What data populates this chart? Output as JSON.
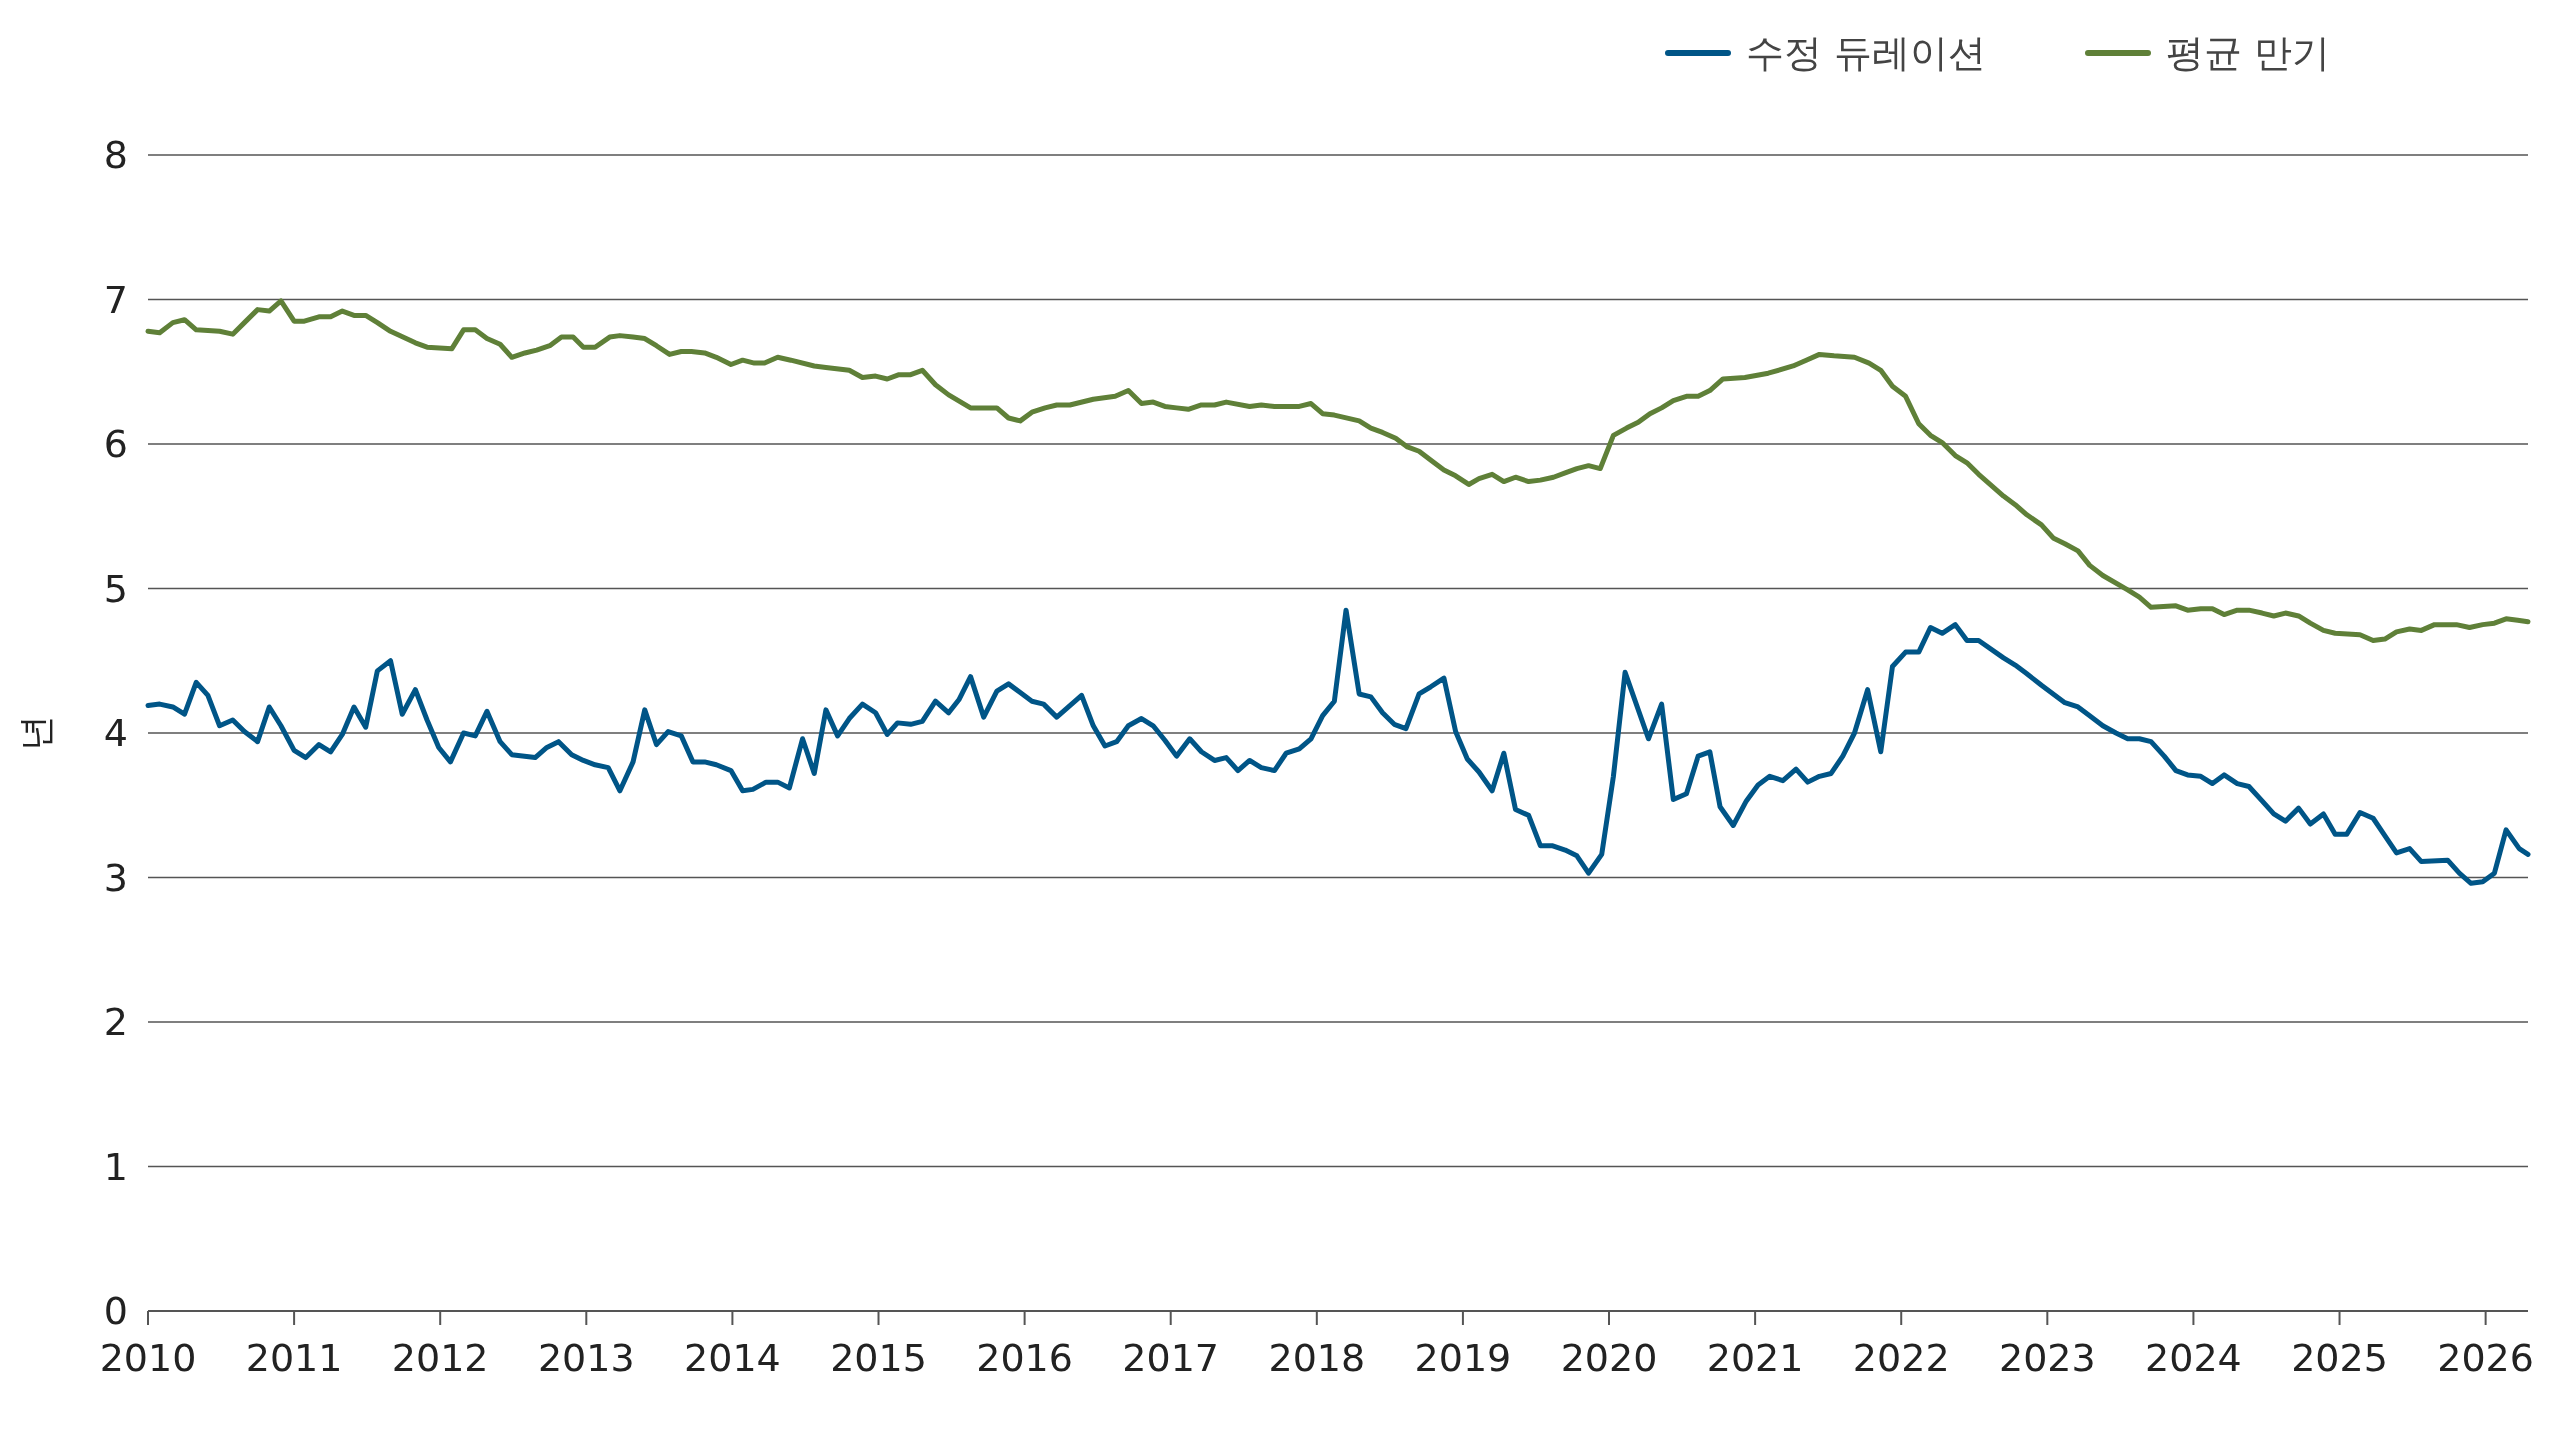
{
  "chart_data": {
    "type": "line",
    "ylabel": "년",
    "xlim": [
      2010,
      2026.29
    ],
    "xticks": [
      2010,
      2011,
      2012,
      2013,
      2014,
      2015,
      2016,
      2017,
      2018,
      2019,
      2020,
      2021,
      2022,
      2023,
      2024,
      2025,
      2026
    ],
    "ylim": [
      0,
      8
    ],
    "yticks": [
      0,
      1,
      2,
      3,
      4,
      5,
      6,
      7,
      8
    ],
    "grid": "y",
    "legend": "top right",
    "line_style": "solid",
    "marker": "none",
    "series": [
      {
        "name": "수정 듀레이션",
        "color": "#005587",
        "x": [
          2010.0,
          2010.08,
          2010.17,
          2010.25,
          2010.33,
          2010.41,
          2010.49,
          2010.58,
          2010.66,
          2010.75,
          2010.83,
          2010.91,
          2011.0,
          2011.08,
          2011.17,
          2011.25,
          2011.33,
          2011.41,
          2011.49,
          2011.57,
          2011.66,
          2011.74,
          2011.83,
          2011.91,
          2011.99,
          2012.07,
          2012.16,
          2012.24,
          2012.32,
          2012.41,
          2012.49,
          2012.65,
          2012.73,
          2012.81,
          2012.9,
          2012.98,
          2013.06,
          2013.15,
          2013.23,
          2013.32,
          2013.4,
          2013.48,
          2013.56,
          2013.65,
          2013.73,
          2013.81,
          2013.89,
          2013.99,
          2014.07,
          2014.14,
          2014.23,
          2014.31,
          2014.39,
          2014.48,
          2014.56,
          2014.64,
          2014.72,
          2014.8,
          2014.89,
          2014.98,
          2015.06,
          2015.13,
          2015.22,
          2015.3,
          2015.39,
          2015.48,
          2015.55,
          2015.63,
          2015.72,
          2015.81,
          2015.89,
          2015.97,
          2016.05,
          2016.13,
          2016.22,
          2016.31,
          2016.39,
          2016.47,
          2016.55,
          2016.63,
          2016.71,
          2016.8,
          2016.88,
          2016.96,
          2017.04,
          2017.13,
          2017.21,
          2017.3,
          2017.38,
          2017.46,
          2017.54,
          2017.62,
          2017.71,
          2017.79,
          2017.88,
          2017.96,
          2018.04,
          2018.12,
          2018.2,
          2018.29,
          2018.37,
          2018.45,
          2018.53,
          2018.61,
          2018.7,
          2018.78,
          2018.87,
          2018.95,
          2019.03,
          2019.11,
          2019.2,
          2019.28,
          2019.36,
          2019.45,
          2019.53,
          2019.61,
          2019.7,
          2019.78,
          2019.86,
          2019.95,
          2020.03,
          2020.11,
          2020.27,
          2020.36,
          2020.44,
          2020.53,
          2020.61,
          2020.69,
          2020.76,
          2020.85,
          2020.94,
          2021.02,
          2021.1,
          2021.19,
          2021.28,
          2021.36,
          2021.44,
          2021.52,
          2021.6,
          2021.68,
          2021.77,
          2021.86,
          2021.94,
          2022.03,
          2022.12,
          2022.2,
          2022.28,
          2022.37,
          2022.45,
          2022.53,
          2022.7,
          2022.78,
          2022.86,
          2022.96,
          2023.04,
          2023.12,
          2023.21,
          2023.29,
          2023.38,
          2023.47,
          2023.55,
          2023.63,
          2023.71,
          2023.8,
          2023.88,
          2023.96,
          2024.05,
          2024.13,
          2024.21,
          2024.3,
          2024.38,
          2024.47,
          2024.55,
          2024.63,
          2024.72,
          2024.8,
          2024.89,
          2024.97,
          2025.05,
          2025.14,
          2025.23,
          2025.31,
          2025.39,
          2025.48,
          2025.56,
          2025.74,
          2025.82,
          2025.9,
          2025.98,
          2026.06,
          2026.14,
          2026.23,
          2026.29
        ],
        "values": [
          4.19,
          4.2,
          4.18,
          4.13,
          4.35,
          4.26,
          4.05,
          4.09,
          4.01,
          3.94,
          4.18,
          4.05,
          3.88,
          3.83,
          3.92,
          3.87,
          3.99,
          4.18,
          4.04,
          4.43,
          4.5,
          4.13,
          4.3,
          4.09,
          3.9,
          3.8,
          4.0,
          3.98,
          4.15,
          3.94,
          3.85,
          3.83,
          3.9,
          3.94,
          3.85,
          3.81,
          3.78,
          3.76,
          3.6,
          3.8,
          4.16,
          3.92,
          4.01,
          3.98,
          3.8,
          3.8,
          3.78,
          3.74,
          3.6,
          3.61,
          3.66,
          3.66,
          3.62,
          3.96,
          3.72,
          4.16,
          3.98,
          4.1,
          4.2,
          4.14,
          3.99,
          4.07,
          4.06,
          4.08,
          4.22,
          4.14,
          4.23,
          4.39,
          4.11,
          4.29,
          4.34,
          4.28,
          4.22,
          4.2,
          4.11,
          4.19,
          4.26,
          4.05,
          3.91,
          3.94,
          4.05,
          4.1,
          4.05,
          3.95,
          3.84,
          3.96,
          3.87,
          3.81,
          3.83,
          3.74,
          3.81,
          3.76,
          3.74,
          3.86,
          3.89,
          3.96,
          4.12,
          4.22,
          4.85,
          4.27,
          4.25,
          4.14,
          4.06,
          4.03,
          4.27,
          4.32,
          4.38,
          4.01,
          3.82,
          3.73,
          3.6,
          3.86,
          3.47,
          3.43,
          3.22,
          3.22,
          3.19,
          3.15,
          3.03,
          3.16,
          3.7,
          4.42,
          3.96,
          4.2,
          3.54,
          3.58,
          3.84,
          3.87,
          3.49,
          3.36,
          3.53,
          3.64,
          3.7,
          3.67,
          3.75,
          3.66,
          3.7,
          3.72,
          3.84,
          4.0,
          4.3,
          3.87,
          4.46,
          4.56,
          4.56,
          4.73,
          4.69,
          4.75,
          4.64,
          4.64,
          4.52,
          4.47,
          4.41,
          4.33,
          4.27,
          4.21,
          4.18,
          4.12,
          4.05,
          4.0,
          3.96,
          3.96,
          3.94,
          3.84,
          3.74,
          3.71,
          3.7,
          3.65,
          3.71,
          3.65,
          3.63,
          3.53,
          3.44,
          3.39,
          3.48,
          3.37,
          3.44,
          3.3,
          3.3,
          3.45,
          3.41,
          3.29,
          3.17,
          3.2,
          3.11,
          3.12,
          3.03,
          2.96,
          2.97,
          3.03,
          3.33,
          3.2,
          3.16
        ]
      },
      {
        "name": "평균 만기",
        "color": "#5f8038",
        "x": [
          2010.0,
          2010.08,
          2010.17,
          2010.25,
          2010.33,
          2010.49,
          2010.58,
          2010.66,
          2010.75,
          2010.83,
          2010.91,
          2011.0,
          2011.07,
          2011.17,
          2011.25,
          2011.33,
          2011.41,
          2011.49,
          2011.57,
          2011.66,
          2011.83,
          2011.91,
          2012.08,
          2012.16,
          2012.24,
          2012.32,
          2012.41,
          2012.49,
          2012.58,
          2012.66,
          2012.75,
          2012.83,
          2012.91,
          2012.98,
          2013.06,
          2013.16,
          2013.23,
          2013.32,
          2013.4,
          2013.48,
          2013.57,
          2013.65,
          2013.72,
          2013.81,
          2013.89,
          2013.99,
          2014.07,
          2014.15,
          2014.22,
          2014.31,
          2014.4,
          2014.56,
          2014.64,
          2014.8,
          2014.89,
          2014.98,
          2015.06,
          2015.14,
          2015.22,
          2015.3,
          2015.39,
          2015.48,
          2015.63,
          2015.72,
          2015.81,
          2015.89,
          2015.97,
          2016.05,
          2016.14,
          2016.22,
          2016.31,
          2016.47,
          2016.62,
          2016.71,
          2016.8,
          2016.88,
          2016.96,
          2017.04,
          2017.12,
          2017.21,
          2017.3,
          2017.38,
          2017.54,
          2017.62,
          2017.71,
          2017.79,
          2017.88,
          2017.96,
          2018.04,
          2018.12,
          2018.29,
          2018.37,
          2018.45,
          2018.54,
          2018.62,
          2018.7,
          2018.79,
          2018.87,
          2018.95,
          2019.04,
          2019.11,
          2019.2,
          2019.28,
          2019.36,
          2019.45,
          2019.53,
          2019.62,
          2019.7,
          2019.78,
          2019.86,
          2019.94,
          2020.03,
          2020.12,
          2020.2,
          2020.28,
          2020.36,
          2020.44,
          2020.53,
          2020.61,
          2020.69,
          2020.78,
          2020.93,
          2021.09,
          2021.26,
          2021.35,
          2021.44,
          2021.54,
          2021.68,
          2021.78,
          2021.86,
          2021.94,
          2022.03,
          2022.12,
          2022.2,
          2022.28,
          2022.37,
          2022.45,
          2022.53,
          2022.7,
          2022.78,
          2022.86,
          2022.96,
          2023.04,
          2023.12,
          2023.21,
          2023.29,
          2023.38,
          2023.55,
          2023.63,
          2023.71,
          2023.88,
          2023.96,
          2024.05,
          2024.13,
          2024.21,
          2024.3,
          2024.38,
          2024.47,
          2024.55,
          2024.63,
          2024.72,
          2024.8,
          2024.89,
          2024.97,
          2025.14,
          2025.23,
          2025.31,
          2025.39,
          2025.48,
          2025.56,
          2025.65,
          2025.8,
          2025.89,
          2025.98,
          2026.06,
          2026.14,
          2026.22,
          2026.29
        ],
        "values": [
          6.78,
          6.77,
          6.84,
          6.86,
          6.79,
          6.78,
          6.76,
          6.84,
          6.93,
          6.92,
          6.99,
          6.85,
          6.85,
          6.88,
          6.88,
          6.92,
          6.89,
          6.89,
          6.84,
          6.78,
          6.7,
          6.67,
          6.66,
          6.79,
          6.79,
          6.73,
          6.69,
          6.6,
          6.63,
          6.65,
          6.68,
          6.74,
          6.74,
          6.67,
          6.67,
          6.74,
          6.75,
          6.74,
          6.73,
          6.68,
          6.62,
          6.64,
          6.64,
          6.63,
          6.6,
          6.55,
          6.58,
          6.56,
          6.56,
          6.6,
          6.58,
          6.54,
          6.53,
          6.51,
          6.46,
          6.47,
          6.45,
          6.48,
          6.48,
          6.51,
          6.41,
          6.34,
          6.25,
          6.25,
          6.25,
          6.18,
          6.16,
          6.22,
          6.25,
          6.27,
          6.27,
          6.31,
          6.33,
          6.37,
          6.28,
          6.29,
          6.26,
          6.25,
          6.24,
          6.27,
          6.27,
          6.29,
          6.26,
          6.27,
          6.26,
          6.26,
          6.26,
          6.28,
          6.21,
          6.2,
          6.16,
          6.11,
          6.08,
          6.04,
          5.98,
          5.95,
          5.88,
          5.82,
          5.78,
          5.72,
          5.76,
          5.79,
          5.74,
          5.77,
          5.74,
          5.75,
          5.77,
          5.8,
          5.83,
          5.85,
          5.83,
          6.06,
          6.11,
          6.15,
          6.21,
          6.25,
          6.3,
          6.33,
          6.33,
          6.37,
          6.45,
          6.46,
          6.49,
          6.54,
          6.58,
          6.62,
          6.61,
          6.6,
          6.56,
          6.51,
          6.4,
          6.33,
          6.14,
          6.06,
          6.01,
          5.92,
          5.87,
          5.79,
          5.64,
          5.58,
          5.51,
          5.44,
          5.35,
          5.31,
          5.26,
          5.16,
          5.09,
          4.99,
          4.94,
          4.87,
          4.88,
          4.85,
          4.86,
          4.86,
          4.82,
          4.85,
          4.85,
          4.83,
          4.81,
          4.83,
          4.81,
          4.76,
          4.71,
          4.69,
          4.68,
          4.64,
          4.65,
          4.7,
          4.72,
          4.71,
          4.75,
          4.75,
          4.73,
          4.75,
          4.76,
          4.79,
          4.78,
          4.77
        ]
      }
    ]
  }
}
